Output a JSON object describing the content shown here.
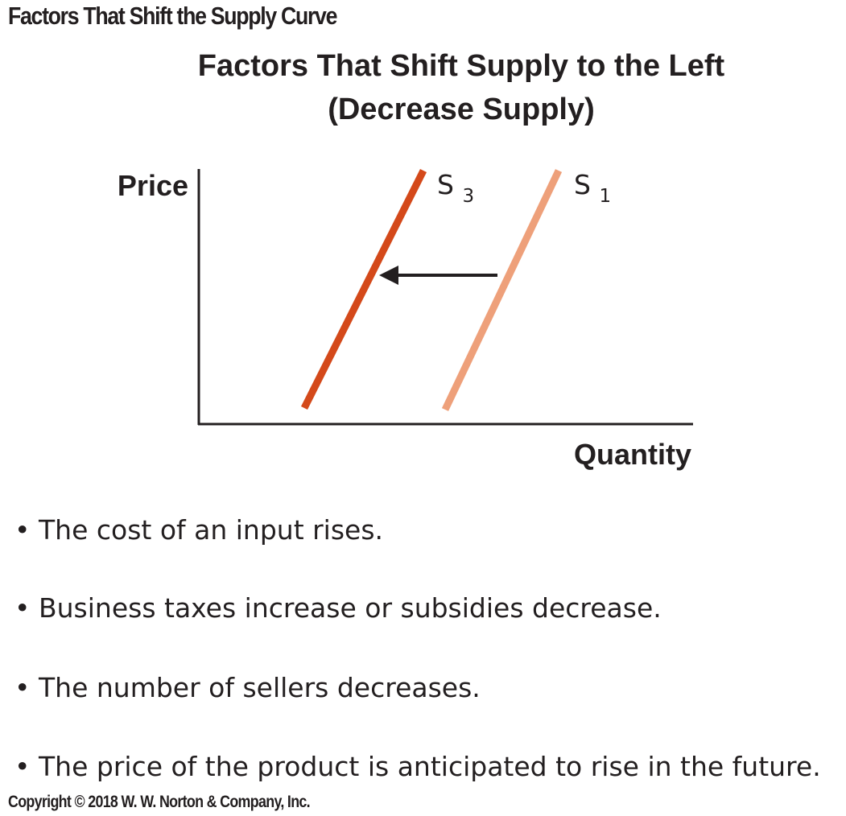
{
  "header": "Factors That Shift the Supply Curve",
  "title_line1": "Factors That Shift Supply to the Left",
  "title_line2": "(Decrease Supply)",
  "diagram": {
    "y_axis_label": "Price",
    "x_axis_label": "Quantity",
    "curves": [
      {
        "letter": "S",
        "subscript": "3",
        "color": "#d4491a",
        "role": "new supply (shifted left)"
      },
      {
        "letter": "S",
        "subscript": "1",
        "color": "#eea07a",
        "role": "original supply"
      }
    ],
    "arrow_color": "#231f20",
    "shift_direction": "left"
  },
  "bullets": [
    "The cost of an input rises.",
    "Business taxes increase or subsidies decrease.",
    "The number of sellers decreases.",
    "The price of the product is anticipated to rise in the future."
  ],
  "bullet_marker": "•",
  "copyright": "Copyright © 2018 W. W. Norton & Company, Inc."
}
